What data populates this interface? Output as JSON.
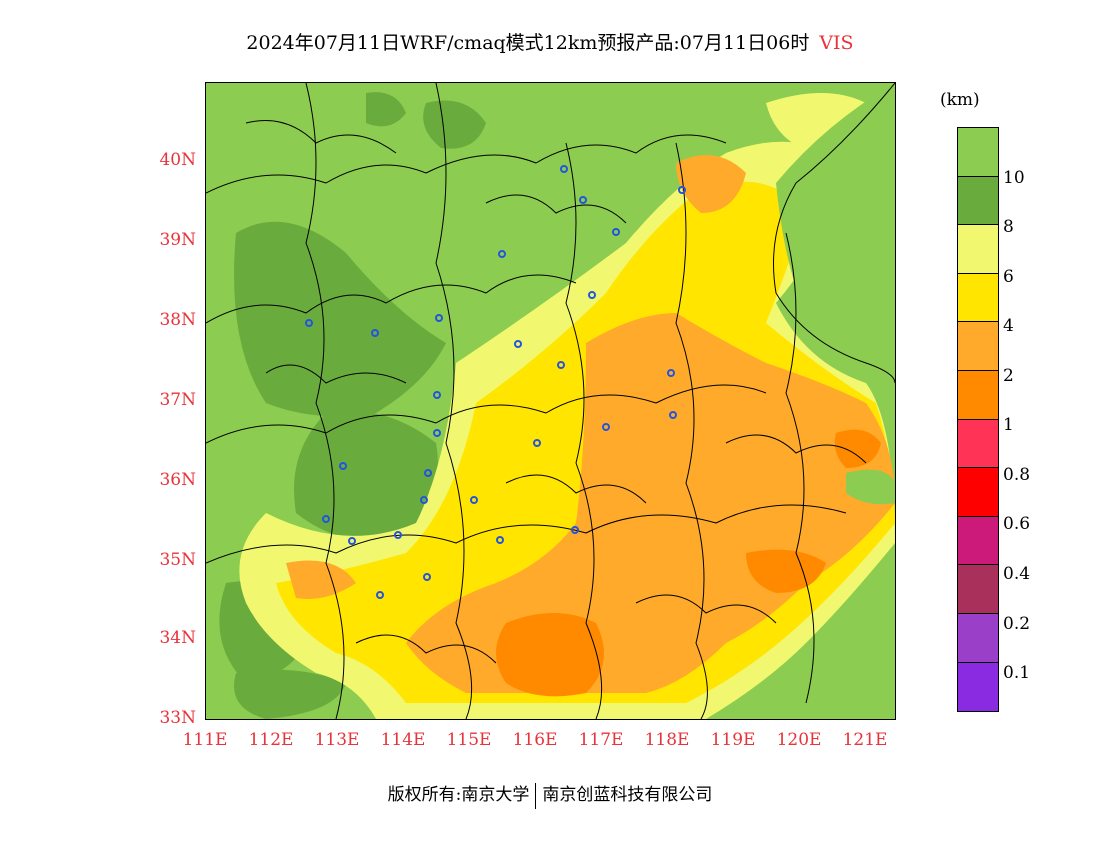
{
  "title": {
    "text": "2024年07月11日WRF/cmaq模式12km预报产品:07月11日06时",
    "variable": "VIS"
  },
  "map": {
    "lat_labels": [
      "40N",
      "39N",
      "38N",
      "37N",
      "36N",
      "35N",
      "34N",
      "33N"
    ],
    "lon_labels": [
      "111E",
      "112E",
      "113E",
      "114E",
      "115E",
      "116E",
      "117E",
      "118E",
      "119E",
      "120E",
      "121E"
    ],
    "colors": {
      "vis_gt10": "#8ccc50",
      "vis_8_10": "#6aab3e",
      "vis_6_8": "#f1f870",
      "vis_4_6": "#ffe500",
      "vis_2_4": "#ffaa2a",
      "vis_1_2": "#ff8a00",
      "station_marker": "#2255dd",
      "boundary_line": "#000000"
    }
  },
  "legend": {
    "unit": "(km)",
    "ticks": [
      "10",
      "8",
      "6",
      "4",
      "2",
      "1",
      "0.8",
      "0.6",
      "0.4",
      "0.2",
      "0.1"
    ],
    "swatch_colors": [
      "#8ccc50",
      "#6aab3e",
      "#f1f870",
      "#ffe500",
      "#ffaa2a",
      "#ff8a00",
      "#ff3355",
      "#ff0000",
      "#cc1a7a",
      "#a8305a",
      "#9a3fc8",
      "#8a2be2"
    ]
  },
  "footer": {
    "copyright": "版权所有:南京大学",
    "company": "南京创蓝科技有限公司"
  }
}
